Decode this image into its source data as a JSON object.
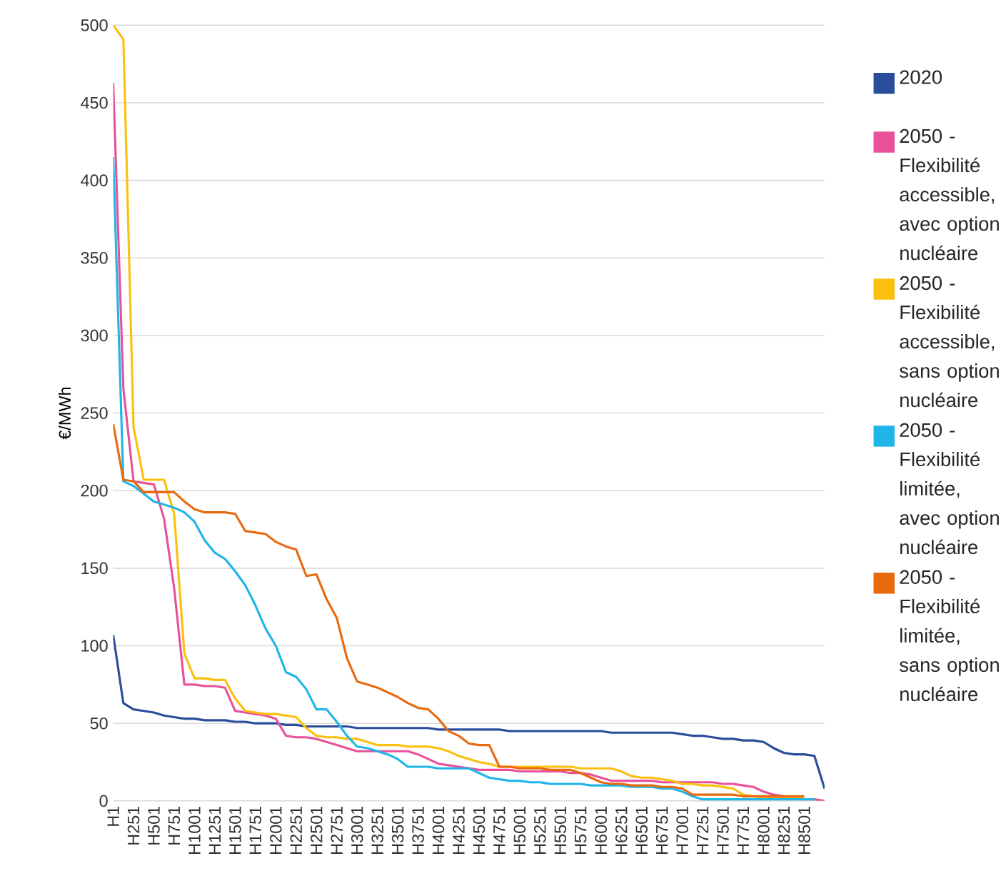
{
  "chart_data": {
    "type": "line",
    "ylabel": "€/MWh",
    "legend": "right",
    "grid": "y",
    "ylim": [
      0,
      500
    ],
    "yticks": [
      0,
      50,
      100,
      150,
      200,
      250,
      300,
      350,
      400,
      450,
      500
    ],
    "categories": [
      "H1",
      null,
      "H251",
      null,
      "H501",
      null,
      "H751",
      null,
      "H1001",
      null,
      "H1251",
      null,
      "H1501",
      null,
      "H1751",
      null,
      "H2001",
      null,
      "H2251",
      null,
      "H2501",
      null,
      "H2751",
      null,
      "H3001",
      null,
      "H3251",
      null,
      "H3501",
      null,
      "H3751",
      null,
      "H4001",
      null,
      "H4251",
      null,
      "H4501",
      null,
      "H4751",
      null,
      "H5001",
      null,
      "H5251",
      null,
      "H5501",
      null,
      "H5751",
      null,
      "H6001",
      null,
      "H6251",
      null,
      "H6501",
      null,
      "H6751",
      null,
      "H7001",
      null,
      "H7251",
      null,
      "H7501",
      null,
      "H7751",
      null,
      "H8001",
      null,
      "H8251",
      null,
      "H8501",
      null,
      null
    ],
    "series": [
      {
        "name": "2020",
        "color": "#2a4d9b",
        "values": [
          107,
          63,
          59,
          58,
          57,
          55,
          54,
          53,
          53,
          52,
          52,
          52,
          51,
          51,
          50,
          50,
          50,
          49,
          49,
          48,
          48,
          48,
          48,
          48,
          47,
          47,
          47,
          47,
          47,
          47,
          47,
          47,
          46,
          46,
          46,
          46,
          46,
          46,
          46,
          45,
          45,
          45,
          45,
          45,
          45,
          45,
          45,
          45,
          45,
          44,
          44,
          44,
          44,
          44,
          44,
          44,
          43,
          42,
          42,
          41,
          40,
          40,
          39,
          39,
          38,
          34,
          31,
          30,
          30,
          29,
          8
        ]
      },
      {
        "name": "2050 - Flexibilité accessible, avec option nucléaire",
        "color": "#e8519a",
        "values": [
          463,
          266,
          206,
          205,
          204,
          182,
          137,
          75,
          75,
          74,
          74,
          73,
          58,
          57,
          56,
          55,
          53,
          42,
          41,
          41,
          40,
          38,
          36,
          34,
          32,
          32,
          32,
          32,
          32,
          32,
          30,
          27,
          24,
          23,
          22,
          21,
          20,
          20,
          20,
          20,
          19,
          19,
          19,
          19,
          19,
          18,
          18,
          17,
          15,
          13,
          13,
          13,
          13,
          13,
          12,
          12,
          12,
          12,
          12,
          12,
          11,
          11,
          10,
          9,
          6,
          4,
          3,
          2,
          1,
          1,
          0
        ]
      },
      {
        "name": "2050 - Flexibilité accessible, sans option nucléaire",
        "color": "#fbbf0d",
        "values": [
          500,
          491,
          241,
          207,
          207,
          207,
          185,
          95,
          79,
          79,
          78,
          78,
          66,
          58,
          57,
          56,
          56,
          55,
          54,
          47,
          42,
          41,
          41,
          40,
          40,
          38,
          36,
          36,
          36,
          35,
          35,
          35,
          34,
          32,
          29,
          27,
          25,
          24,
          22,
          22,
          22,
          22,
          22,
          22,
          22,
          22,
          21,
          21,
          21,
          21,
          19,
          16,
          15,
          15,
          14,
          13,
          11,
          11,
          10,
          10,
          9,
          8,
          4,
          3,
          2,
          2,
          2,
          2,
          2,
          null,
          null
        ]
      },
      {
        "name": "2050 - Flexibilité limitée, avec option nucléaire",
        "color": "#1fb5e8",
        "values": [
          415,
          206,
          203,
          198,
          193,
          191,
          189,
          186,
          180,
          168,
          160,
          156,
          148,
          139,
          126,
          111,
          100,
          83,
          80,
          72,
          59,
          59,
          51,
          42,
          35,
          34,
          32,
          30,
          27,
          22,
          22,
          22,
          21,
          21,
          21,
          21,
          18,
          15,
          14,
          13,
          13,
          12,
          12,
          11,
          11,
          11,
          11,
          10,
          10,
          10,
          10,
          9,
          9,
          9,
          8,
          8,
          6,
          3,
          1,
          1,
          1,
          1,
          1,
          1,
          1,
          1,
          1,
          1,
          1,
          1,
          null
        ]
      },
      {
        "name": "2050 - Flexibilité limitée, sans option nucléaire",
        "color": "#e8690e",
        "values": [
          243,
          207,
          206,
          199,
          199,
          199,
          199,
          193,
          188,
          186,
          186,
          186,
          185,
          174,
          173,
          172,
          167,
          164,
          162,
          145,
          146,
          130,
          118,
          92,
          77,
          75,
          73,
          70,
          67,
          63,
          60,
          59,
          53,
          45,
          42,
          37,
          36,
          36,
          22,
          22,
          21,
          21,
          21,
          20,
          20,
          20,
          18,
          15,
          12,
          11,
          11,
          10,
          10,
          10,
          9,
          9,
          8,
          4,
          4,
          4,
          4,
          4,
          3,
          3,
          3,
          3,
          3,
          3,
          3,
          null,
          null
        ]
      }
    ]
  }
}
